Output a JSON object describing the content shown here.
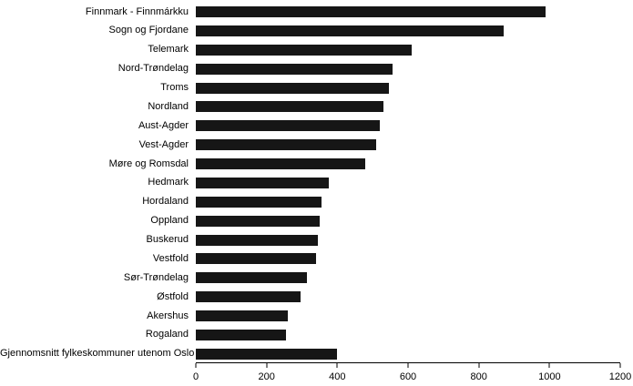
{
  "chart_data": {
    "type": "bar",
    "orientation": "horizontal",
    "title": "",
    "xlabel": "",
    "ylabel": "",
    "xlim": [
      0,
      1200
    ],
    "xticks": [
      0,
      200,
      400,
      600,
      800,
      1000,
      1200
    ],
    "grid": false,
    "legend": "none",
    "bar_color": "#161616",
    "background_color": "#ffffff",
    "categories": [
      "Finnmark - Finnmárkku",
      "Sogn og Fjordane",
      "Telemark",
      "Nord-Trøndelag",
      "Troms",
      "Nordland",
      "Aust-Agder",
      "Vest-Agder",
      "Møre og Romsdal",
      "Hedmark",
      "Hordaland",
      "Oppland",
      "Buskerud",
      "Vestfold",
      "Sør-Trøndelag",
      "Østfold",
      "Akershus",
      "Rogaland",
      "Gjennomsnitt fylkeskommuner utenom Oslo"
    ],
    "values": [
      990,
      870,
      610,
      555,
      545,
      530,
      520,
      510,
      480,
      375,
      355,
      350,
      345,
      340,
      315,
      295,
      260,
      255,
      400
    ]
  }
}
